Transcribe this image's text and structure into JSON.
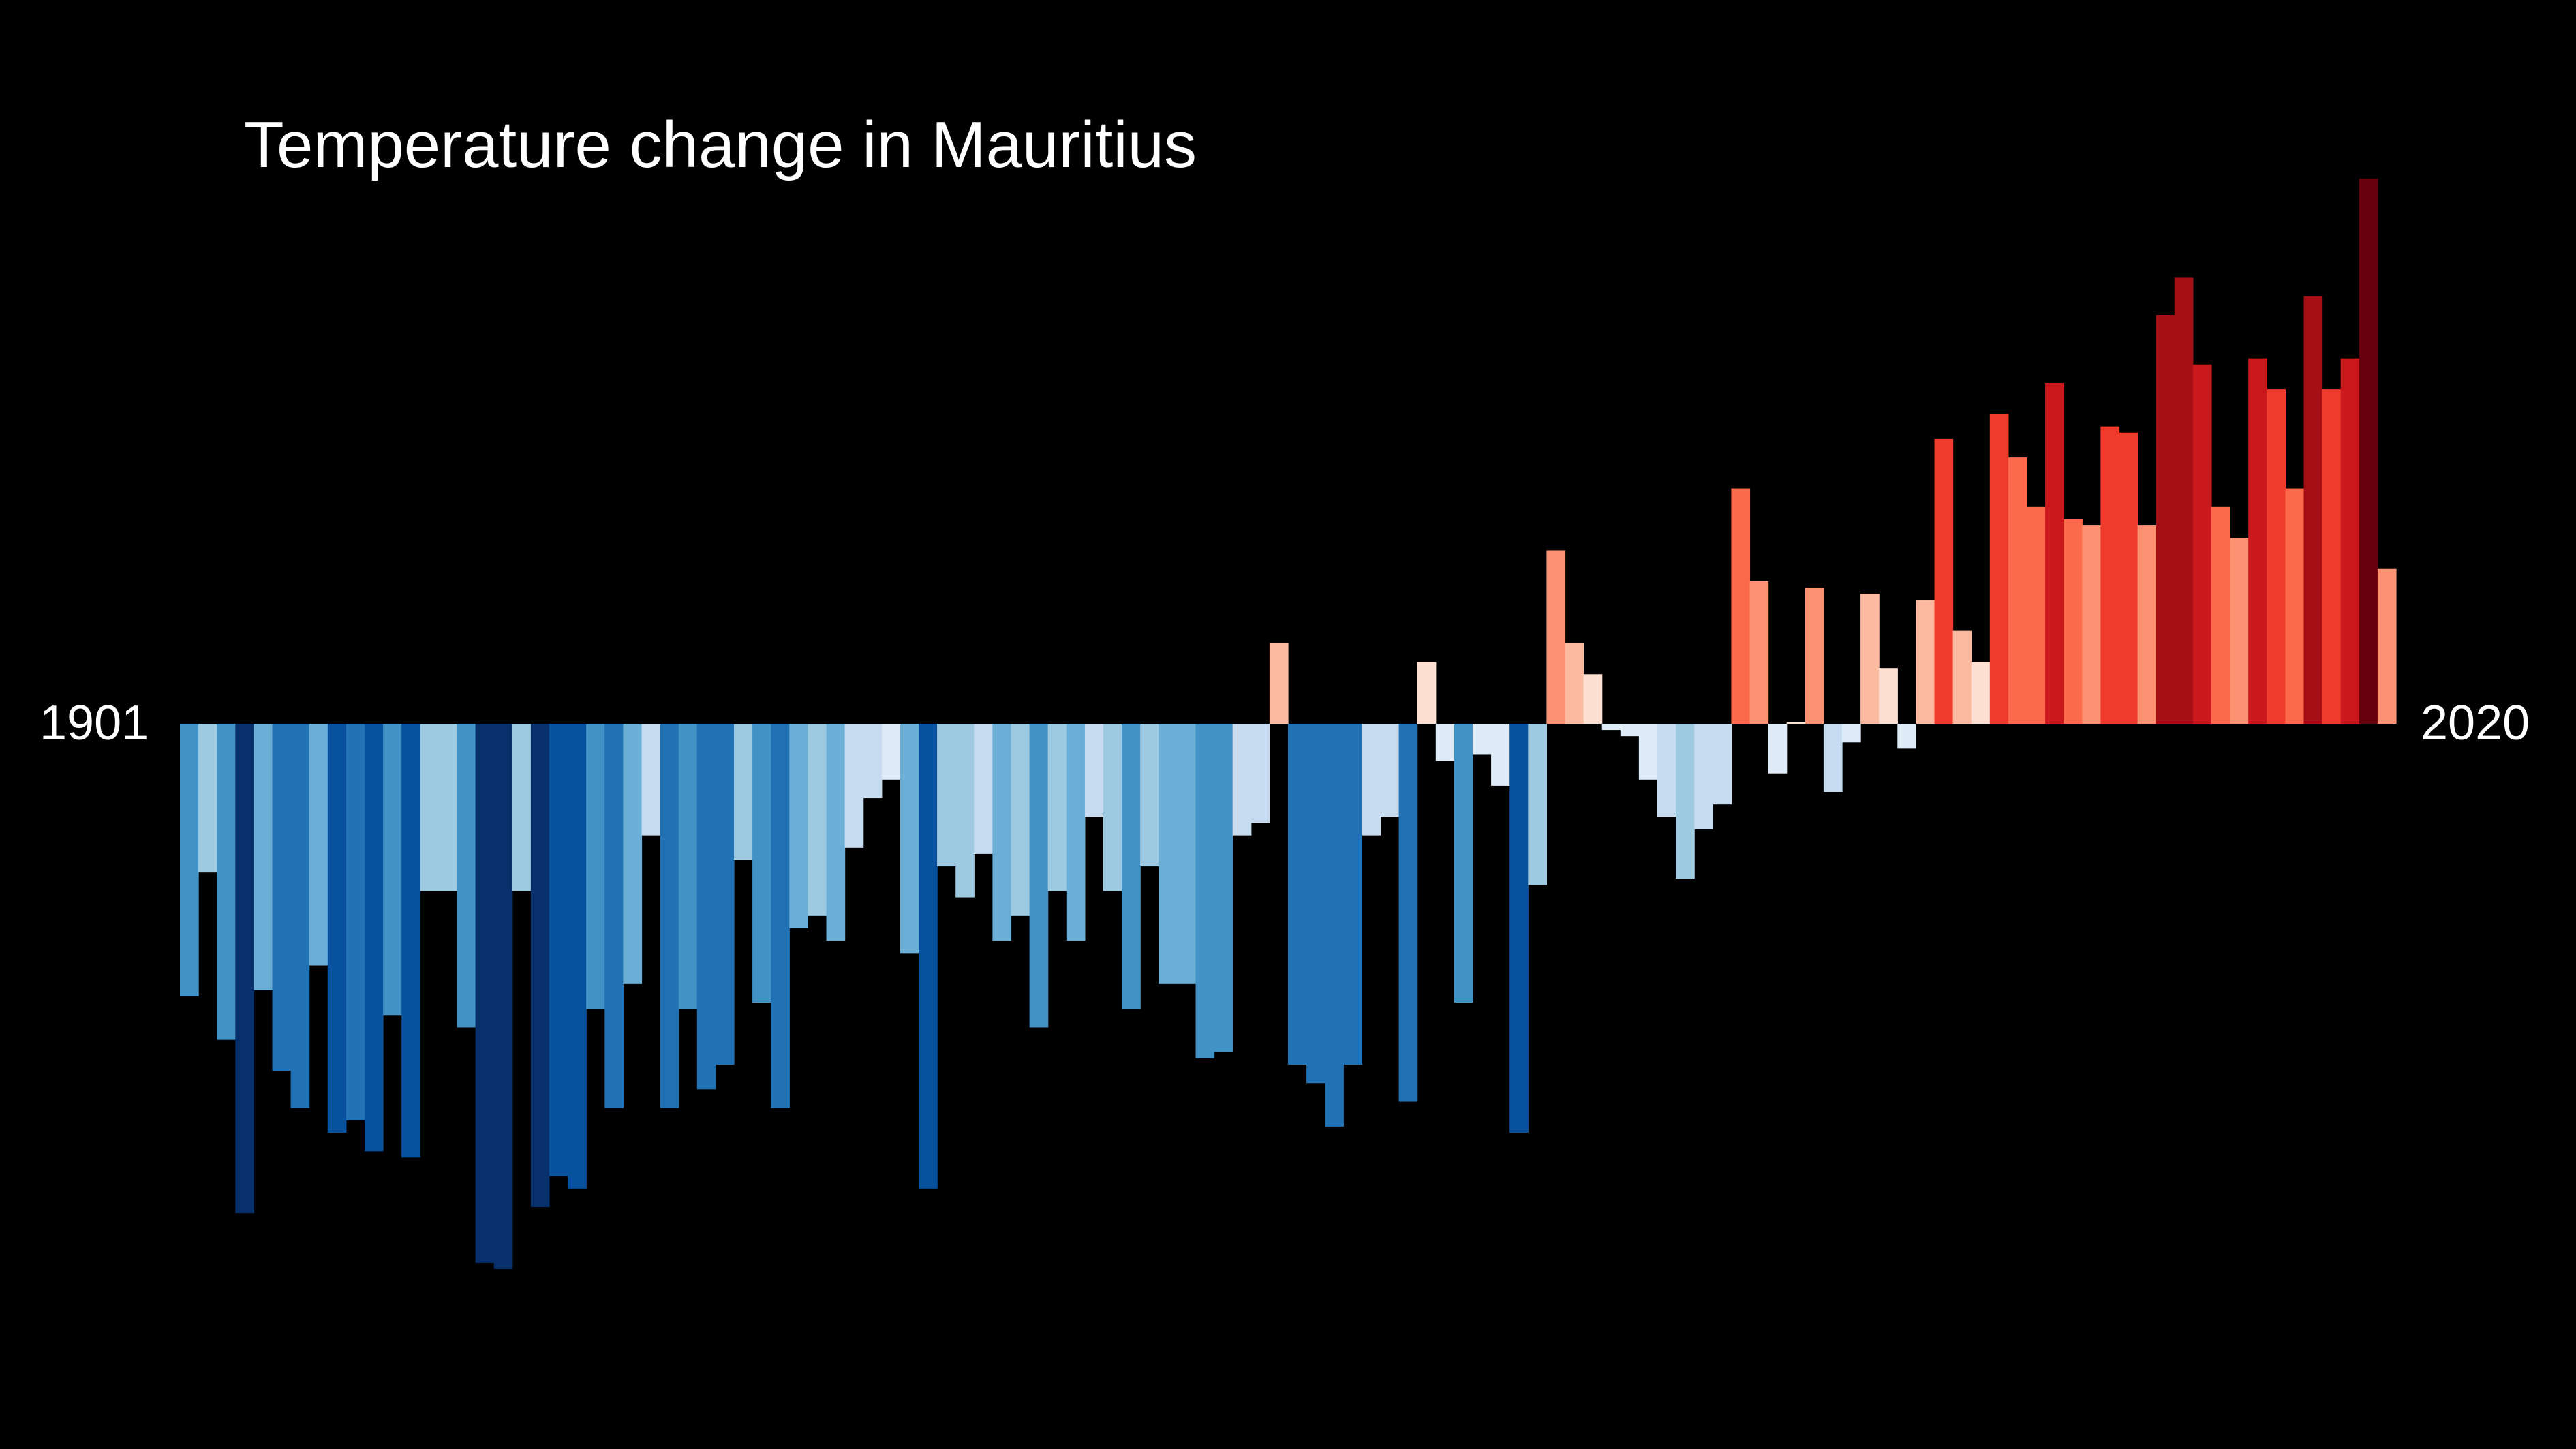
{
  "chart_data": {
    "type": "bar",
    "title": "Temperature change in Mauritius",
    "x_start_label": "1901",
    "x_end_label": "2020",
    "x": [
      1901,
      1902,
      1903,
      1904,
      1905,
      1906,
      1907,
      1908,
      1909,
      1910,
      1911,
      1912,
      1913,
      1914,
      1915,
      1916,
      1917,
      1918,
      1919,
      1920,
      1921,
      1922,
      1923,
      1924,
      1925,
      1926,
      1927,
      1928,
      1929,
      1930,
      1931,
      1932,
      1933,
      1934,
      1935,
      1936,
      1937,
      1938,
      1939,
      1940,
      1941,
      1942,
      1943,
      1944,
      1945,
      1946,
      1947,
      1948,
      1949,
      1950,
      1951,
      1952,
      1953,
      1954,
      1955,
      1956,
      1957,
      1958,
      1959,
      1960,
      1961,
      1962,
      1963,
      1964,
      1965,
      1966,
      1967,
      1968,
      1969,
      1970,
      1971,
      1972,
      1973,
      1974,
      1975,
      1976,
      1977,
      1978,
      1979,
      1980,
      1981,
      1982,
      1983,
      1984,
      1985,
      1986,
      1987,
      1988,
      1989,
      1990,
      1991,
      1992,
      1993,
      1994,
      1995,
      1996,
      1997,
      1998,
      1999,
      2000,
      2001,
      2002,
      2003,
      2004,
      2005,
      2006,
      2007,
      2008,
      2009,
      2010,
      2011,
      2012,
      2013,
      2014,
      2015,
      2016,
      2017,
      2018,
      2019,
      2020
    ],
    "values": [
      -0.44,
      -0.24,
      -0.51,
      -0.79,
      -0.43,
      -0.56,
      -0.62,
      -0.39,
      -0.66,
      -0.64,
      -0.69,
      -0.47,
      -0.7,
      -0.27,
      -0.27,
      -0.49,
      -0.87,
      -0.88,
      -0.27,
      -0.78,
      -0.73,
      -0.75,
      -0.46,
      -0.62,
      -0.42,
      -0.18,
      -0.62,
      -0.46,
      -0.59,
      -0.55,
      -0.22,
      -0.45,
      -0.62,
      -0.33,
      -0.31,
      -0.35,
      -0.2,
      -0.12,
      -0.09,
      -0.37,
      -0.75,
      -0.23,
      -0.28,
      -0.21,
      -0.35,
      -0.31,
      -0.49,
      -0.27,
      -0.35,
      -0.15,
      -0.27,
      -0.46,
      -0.23,
      -0.42,
      -0.42,
      -0.54,
      -0.53,
      -0.18,
      -0.16,
      0.13,
      -0.55,
      -0.58,
      -0.65,
      -0.55,
      -0.18,
      -0.15,
      -0.61,
      0.1,
      -0.06,
      -0.45,
      -0.05,
      -0.1,
      -0.66,
      -0.26,
      0.28,
      0.13,
      0.08,
      -0.01,
      -0.02,
      -0.09,
      -0.15,
      -0.25,
      -0.17,
      -0.13,
      0.38,
      0.23,
      -0.08,
      0.0,
      0.22,
      -0.11,
      -0.03,
      0.21,
      0.09,
      -0.04,
      0.2,
      0.46,
      0.15,
      0.1,
      0.5,
      0.43,
      0.35,
      0.55,
      0.33,
      0.32,
      0.48,
      0.47,
      0.32,
      0.66,
      0.72,
      0.58,
      0.35,
      0.3,
      0.59,
      0.54,
      0.38,
      0.69,
      0.54,
      0.59,
      0.88,
      0.25
    ],
    "ylim": [
      -0.95,
      0.95
    ],
    "grid": false,
    "legend": "none"
  }
}
